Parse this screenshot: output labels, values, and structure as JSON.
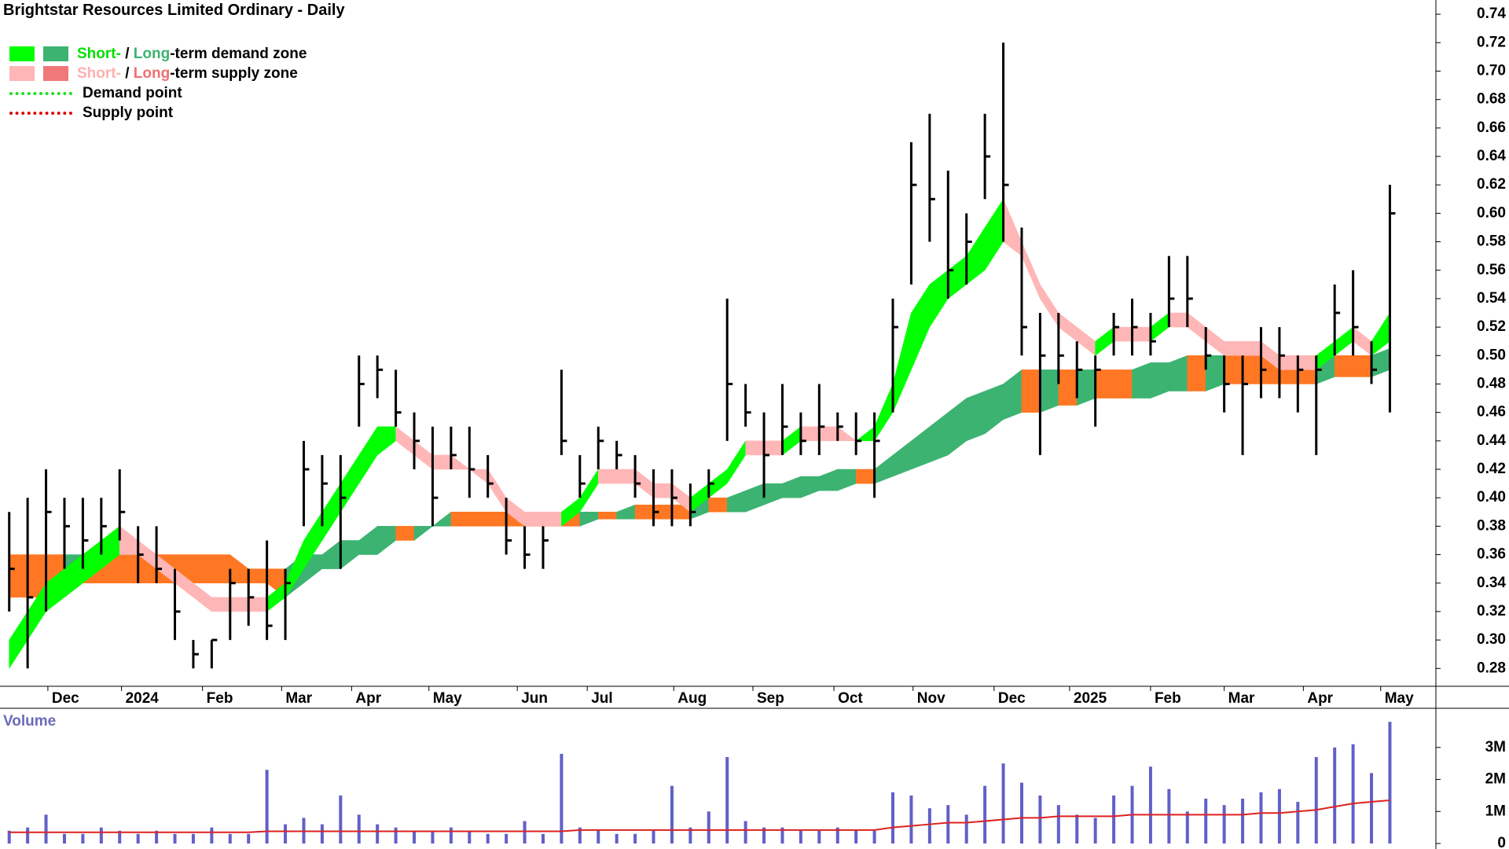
{
  "chart_data": {
    "type": "ohlc",
    "title": "Brightstar Resources Limited Ordinary - Daily",
    "legend": [
      {
        "swatches": [
          "#00ff00",
          "#3cb371"
        ],
        "parts": [
          "Short-",
          " / ",
          "Long",
          "-term demand zone"
        ],
        "part_colors": [
          "#00e000",
          "#000000",
          "#3cb371",
          "#000000"
        ]
      },
      {
        "swatches": [
          "#ffb6b6",
          "#f07878"
        ],
        "parts": [
          "Short-",
          " / ",
          "Long",
          "-term supply zone"
        ],
        "part_colors": [
          "#ffb0b0",
          "#000000",
          "#f07070",
          "#000000"
        ]
      },
      {
        "line": "#22dd22",
        "parts": [
          "Demand point"
        ],
        "part_colors": [
          "#000000"
        ]
      },
      {
        "line": "#e00000",
        "parts": [
          "Supply point"
        ],
        "part_colors": [
          "#000000"
        ]
      }
    ],
    "x": [
      0,
      1,
      2,
      3,
      4,
      5,
      6,
      7,
      8,
      9,
      10,
      11,
      12,
      13,
      14,
      15,
      16,
      17,
      18,
      19,
      20,
      21,
      22,
      23,
      24,
      25,
      26,
      27,
      28,
      29,
      30,
      31,
      32,
      33,
      34,
      35,
      36,
      37,
      38,
      39,
      40,
      41,
      42,
      43,
      44,
      45,
      46,
      47,
      48,
      49,
      50,
      51,
      52,
      53,
      54,
      55,
      56,
      57,
      58,
      59,
      60,
      61,
      62,
      63,
      64,
      65,
      66,
      67,
      68,
      69,
      70,
      71,
      72,
      73,
      74,
      75
    ],
    "xlim": [
      -0.5,
      77.5
    ],
    "xticks": [
      {
        "value": 2.1,
        "label": "Dec"
      },
      {
        "value": 6.1,
        "label": "2024"
      },
      {
        "value": 10.5,
        "label": "Feb"
      },
      {
        "value": 14.8,
        "label": "Mar"
      },
      {
        "value": 18.6,
        "label": "Apr"
      },
      {
        "value": 22.8,
        "label": "May"
      },
      {
        "value": 27.6,
        "label": "Jun"
      },
      {
        "value": 31.4,
        "label": "Jul"
      },
      {
        "value": 36.1,
        "label": "Aug"
      },
      {
        "value": 40.4,
        "label": "Sep"
      },
      {
        "value": 44.8,
        "label": "Oct"
      },
      {
        "value": 49.1,
        "label": "Nov"
      },
      {
        "value": 53.5,
        "label": "Dec"
      },
      {
        "value": 57.6,
        "label": "2025"
      },
      {
        "value": 62.0,
        "label": "Feb"
      },
      {
        "value": 66.0,
        "label": "Mar"
      },
      {
        "value": 70.3,
        "label": "Apr"
      },
      {
        "value": 74.5,
        "label": "May"
      }
    ],
    "ylim": [
      0.268,
      0.75
    ],
    "yticks": [
      0.28,
      {
        "value": 0.3,
        "label": "0.30"
      },
      0.32,
      0.34,
      0.36,
      0.38,
      {
        "value": 0.4,
        "label": "0.40"
      },
      0.42,
      0.44,
      0.46,
      0.48,
      {
        "value": 0.5,
        "label": "0.50"
      },
      0.52,
      0.54,
      0.56,
      0.58,
      {
        "value": 0.6,
        "label": "0.60"
      },
      0.62,
      0.64,
      0.66,
      0.68,
      {
        "value": 0.7,
        "label": "0.70"
      },
      0.72,
      0.74
    ],
    "price": {
      "color": "#000000",
      "high": [
        0.39,
        0.4,
        0.42,
        0.4,
        0.4,
        0.4,
        0.42,
        0.38,
        0.38,
        0.35,
        0.3,
        0.3,
        0.35,
        0.35,
        0.37,
        0.35,
        0.44,
        0.43,
        0.43,
        0.5,
        0.5,
        0.49,
        0.46,
        0.45,
        0.45,
        0.45,
        0.43,
        0.4,
        0.38,
        0.38,
        0.49,
        0.43,
        0.45,
        0.44,
        0.43,
        0.42,
        0.42,
        0.41,
        0.42,
        0.54,
        0.48,
        0.46,
        0.48,
        0.46,
        0.48,
        0.46,
        0.46,
        0.46,
        0.54,
        0.65,
        0.67,
        0.63,
        0.6,
        0.67,
        0.72,
        0.59,
        0.53,
        0.53,
        0.51,
        0.5,
        0.53,
        0.54,
        0.53,
        0.57,
        0.57,
        0.52,
        0.5,
        0.5,
        0.52,
        0.52,
        0.5,
        0.5,
        0.55,
        0.56,
        0.51,
        0.62
      ],
      "low": [
        0.32,
        0.28,
        0.32,
        0.35,
        0.35,
        0.36,
        0.37,
        0.34,
        0.34,
        0.3,
        0.28,
        0.28,
        0.3,
        0.31,
        0.3,
        0.3,
        0.38,
        0.38,
        0.35,
        0.45,
        0.47,
        0.45,
        0.42,
        0.38,
        0.42,
        0.4,
        0.4,
        0.36,
        0.35,
        0.35,
        0.43,
        0.4,
        0.42,
        0.42,
        0.4,
        0.38,
        0.38,
        0.38,
        0.4,
        0.44,
        0.45,
        0.4,
        0.43,
        0.43,
        0.43,
        0.44,
        0.43,
        0.4,
        0.46,
        0.55,
        0.58,
        0.54,
        0.55,
        0.61,
        0.58,
        0.5,
        0.43,
        0.48,
        0.47,
        0.45,
        0.5,
        0.5,
        0.5,
        0.52,
        0.52,
        0.49,
        0.46,
        0.43,
        0.47,
        0.47,
        0.46,
        0.43,
        0.5,
        0.5,
        0.48,
        0.46
      ],
      "close": [
        0.35,
        0.33,
        0.39,
        0.38,
        0.37,
        0.38,
        0.39,
        0.36,
        0.35,
        0.32,
        0.29,
        0.3,
        0.34,
        0.33,
        0.31,
        0.34,
        0.42,
        0.41,
        0.4,
        0.48,
        0.49,
        0.46,
        0.44,
        0.4,
        0.43,
        0.42,
        0.41,
        0.37,
        0.36,
        0.37,
        0.44,
        0.41,
        0.44,
        0.43,
        0.41,
        0.39,
        0.4,
        0.39,
        0.41,
        0.48,
        0.46,
        0.43,
        0.45,
        0.44,
        0.45,
        0.45,
        0.44,
        0.44,
        0.52,
        0.62,
        0.61,
        0.56,
        0.58,
        0.64,
        0.62,
        0.52,
        0.5,
        0.5,
        0.49,
        0.49,
        0.52,
        0.52,
        0.51,
        0.54,
        0.54,
        0.5,
        0.48,
        0.48,
        0.49,
        0.5,
        0.49,
        0.49,
        0.53,
        0.52,
        0.49,
        0.6
      ]
    },
    "zones": [
      {
        "rising_color": "#3cb371",
        "falling_color": "#ff7722",
        "upper": [
          0.36,
          0.36,
          0.36,
          0.36,
          0.36,
          0.36,
          0.36,
          0.36,
          0.36,
          0.36,
          0.36,
          0.36,
          0.36,
          0.35,
          0.35,
          0.35,
          0.36,
          0.36,
          0.37,
          0.37,
          0.38,
          0.38,
          0.38,
          0.38,
          0.39,
          0.39,
          0.39,
          0.39,
          0.39,
          0.39,
          0.39,
          0.39,
          0.39,
          0.39,
          0.395,
          0.395,
          0.395,
          0.395,
          0.4,
          0.4,
          0.405,
          0.41,
          0.41,
          0.415,
          0.415,
          0.42,
          0.42,
          0.42,
          0.43,
          0.44,
          0.45,
          0.46,
          0.47,
          0.475,
          0.48,
          0.49,
          0.49,
          0.49,
          0.49,
          0.49,
          0.49,
          0.49,
          0.495,
          0.495,
          0.5,
          0.5,
          0.5,
          0.5,
          0.5,
          0.5,
          0.5,
          0.5,
          0.5,
          0.5,
          0.5,
          0.505
        ],
        "lower": [
          0.33,
          0.33,
          0.33,
          0.33,
          0.34,
          0.34,
          0.34,
          0.34,
          0.34,
          0.34,
          0.34,
          0.34,
          0.34,
          0.34,
          0.34,
          0.33,
          0.34,
          0.35,
          0.35,
          0.36,
          0.36,
          0.37,
          0.37,
          0.38,
          0.38,
          0.38,
          0.38,
          0.38,
          0.38,
          0.38,
          0.38,
          0.38,
          0.385,
          0.385,
          0.385,
          0.385,
          0.385,
          0.385,
          0.39,
          0.39,
          0.39,
          0.395,
          0.4,
          0.4,
          0.405,
          0.405,
          0.41,
          0.41,
          0.415,
          0.42,
          0.425,
          0.43,
          0.44,
          0.445,
          0.455,
          0.46,
          0.46,
          0.465,
          0.465,
          0.47,
          0.47,
          0.47,
          0.47,
          0.475,
          0.475,
          0.475,
          0.48,
          0.48,
          0.48,
          0.48,
          0.48,
          0.48,
          0.485,
          0.485,
          0.485,
          0.49
        ]
      },
      {
        "rising_color": "#00ff00",
        "falling_color": "#ffb6b6",
        "upper": [
          0.3,
          0.32,
          0.34,
          0.35,
          0.36,
          0.37,
          0.38,
          0.37,
          0.36,
          0.35,
          0.34,
          0.33,
          0.33,
          0.33,
          0.33,
          0.34,
          0.37,
          0.39,
          0.41,
          0.43,
          0.45,
          0.45,
          0.44,
          0.43,
          0.43,
          0.42,
          0.42,
          0.4,
          0.39,
          0.39,
          0.39,
          0.4,
          0.42,
          0.42,
          0.42,
          0.41,
          0.41,
          0.4,
          0.41,
          0.42,
          0.44,
          0.44,
          0.44,
          0.45,
          0.45,
          0.45,
          0.44,
          0.45,
          0.48,
          0.53,
          0.55,
          0.56,
          0.57,
          0.59,
          0.61,
          0.58,
          0.55,
          0.53,
          0.52,
          0.51,
          0.52,
          0.52,
          0.52,
          0.53,
          0.53,
          0.52,
          0.51,
          0.51,
          0.51,
          0.5,
          0.5,
          0.5,
          0.51,
          0.52,
          0.51,
          0.53
        ],
        "lower": [
          0.28,
          0.3,
          0.32,
          0.33,
          0.34,
          0.35,
          0.36,
          0.36,
          0.35,
          0.34,
          0.33,
          0.32,
          0.32,
          0.32,
          0.32,
          0.33,
          0.35,
          0.37,
          0.39,
          0.41,
          0.43,
          0.44,
          0.43,
          0.42,
          0.42,
          0.42,
          0.41,
          0.39,
          0.38,
          0.38,
          0.38,
          0.39,
          0.41,
          0.41,
          0.41,
          0.4,
          0.4,
          0.39,
          0.4,
          0.41,
          0.43,
          0.43,
          0.43,
          0.44,
          0.44,
          0.44,
          0.44,
          0.44,
          0.46,
          0.49,
          0.52,
          0.54,
          0.55,
          0.56,
          0.58,
          0.57,
          0.54,
          0.52,
          0.51,
          0.5,
          0.51,
          0.51,
          0.51,
          0.52,
          0.52,
          0.51,
          0.5,
          0.5,
          0.5,
          0.49,
          0.49,
          0.49,
          0.5,
          0.51,
          0.5,
          0.51
        ]
      }
    ],
    "volume": {
      "label": "Volume",
      "label_color": "#6a6ab8",
      "color": "#6060c8",
      "values": [
        400000,
        500000,
        900000,
        300000,
        300000,
        500000,
        400000,
        300000,
        400000,
        300000,
        300000,
        500000,
        300000,
        300000,
        2300000,
        600000,
        800000,
        600000,
        1500000,
        900000,
        600000,
        500000,
        400000,
        400000,
        500000,
        400000,
        300000,
        300000,
        700000,
        300000,
        2800000,
        500000,
        400000,
        300000,
        300000,
        400000,
        1800000,
        500000,
        1000000,
        2700000,
        700000,
        500000,
        500000,
        400000,
        400000,
        500000,
        400000,
        400000,
        1600000,
        1500000,
        1100000,
        1200000,
        900000,
        1800000,
        2500000,
        1900000,
        1500000,
        1200000,
        900000,
        800000,
        1500000,
        1800000,
        2400000,
        1700000,
        1000000,
        1400000,
        1200000,
        1400000,
        1600000,
        1700000,
        1300000,
        2700000,
        3000000,
        3100000,
        2200000,
        3800000
      ],
      "average": {
        "color": "#dd2222",
        "values": [
          350000,
          350000,
          350000,
          350000,
          350000,
          350000,
          350000,
          350000,
          350000,
          350000,
          350000,
          350000,
          350000,
          350000,
          380000,
          380000,
          380000,
          380000,
          380000,
          380000,
          380000,
          380000,
          380000,
          380000,
          380000,
          380000,
          380000,
          380000,
          380000,
          380000,
          380000,
          420000,
          420000,
          420000,
          420000,
          420000,
          420000,
          420000,
          420000,
          420000,
          420000,
          420000,
          420000,
          420000,
          420000,
          420000,
          420000,
          420000,
          500000,
          550000,
          600000,
          650000,
          650000,
          700000,
          750000,
          800000,
          800000,
          850000,
          850000,
          850000,
          850000,
          900000,
          900000,
          900000,
          900000,
          900000,
          900000,
          900000,
          950000,
          950000,
          1000000,
          1050000,
          1150000,
          1250000,
          1300000,
          1350000
        ]
      },
      "ylim": [
        0,
        4100000
      ],
      "yticks": [
        0,
        {
          "value": 1000000,
          "label": "1M"
        },
        {
          "value": 2000000,
          "label": "2M"
        },
        {
          "value": 3000000,
          "label": "3M"
        }
      ]
    }
  }
}
